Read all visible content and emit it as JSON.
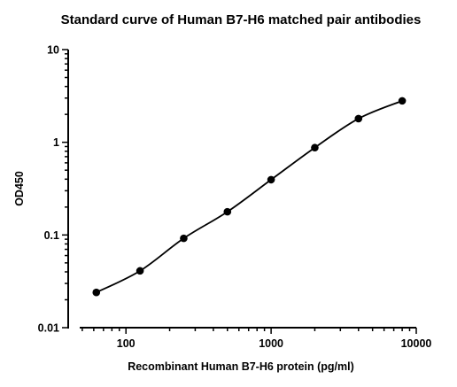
{
  "chart_data": {
    "type": "scatter",
    "title": "Standard curve of Human B7-H6 matched pair antibodies",
    "xlabel": "Recombinant Human B7-H6 protein (pg/ml)",
    "ylabel": "OD450",
    "x_scale": "log",
    "y_scale": "log",
    "xlim": [
      40,
      10000
    ],
    "ylim": [
      0.01,
      10
    ],
    "x_ticks": [
      {
        "value": 100,
        "label": "100"
      },
      {
        "value": 1000,
        "label": "1000"
      },
      {
        "value": 10000,
        "label": "10000"
      }
    ],
    "y_ticks": [
      {
        "value": 0.01,
        "label": "0.01"
      },
      {
        "value": 0.1,
        "label": "0.1"
      },
      {
        "value": 1,
        "label": "1"
      },
      {
        "value": 10,
        "label": "10"
      }
    ],
    "grid": false,
    "legend": "none",
    "series": [
      {
        "x": [
          62.5,
          125,
          250,
          500,
          1000,
          2000,
          4000,
          8000
        ],
        "y": [
          0.024,
          0.041,
          0.092,
          0.178,
          0.395,
          0.875,
          1.8,
          2.8
        ],
        "color": "#000000",
        "fit_curve": true
      }
    ]
  }
}
